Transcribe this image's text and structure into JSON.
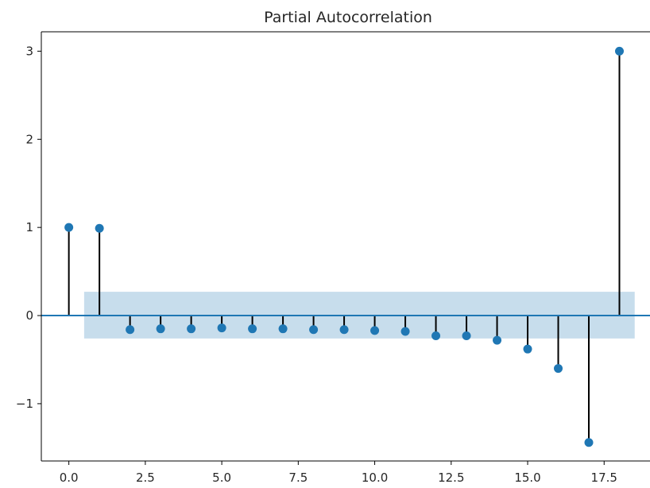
{
  "chart_data": {
    "type": "stem",
    "title": "Partial Autocorrelation",
    "xlabel": "",
    "ylabel": "",
    "x": [
      0,
      1,
      2,
      3,
      4,
      5,
      6,
      7,
      8,
      9,
      10,
      11,
      12,
      13,
      14,
      15,
      16,
      17,
      18
    ],
    "values": [
      1.0,
      0.99,
      -0.16,
      -0.15,
      -0.15,
      -0.14,
      -0.15,
      -0.15,
      -0.16,
      -0.16,
      -0.17,
      -0.18,
      -0.23,
      -0.23,
      -0.28,
      -0.38,
      -0.6,
      -1.44,
      3.0
    ],
    "confidence_band": {
      "x_from": 0.5,
      "x_to": 18.5,
      "lower": -0.26,
      "upper": 0.27
    },
    "xlim": [
      -0.9,
      19.0
    ],
    "ylim": [
      -1.65,
      3.22
    ],
    "x_ticks": [
      0.0,
      2.5,
      5.0,
      7.5,
      10.0,
      12.5,
      15.0,
      17.5
    ],
    "x_tick_labels": [
      "0.0",
      "2.5",
      "5.0",
      "7.5",
      "10.0",
      "12.5",
      "15.0",
      "17.5"
    ],
    "y_ticks": [
      -1,
      0,
      1,
      2,
      3
    ],
    "y_tick_labels": [
      "−1",
      "0",
      "1",
      "2",
      "3"
    ],
    "grid": false,
    "colors": {
      "marker": "#1f77b4",
      "stem": "#000000",
      "band": "#1f77b4",
      "baseline": "#1f77b4",
      "text": "#262626"
    }
  }
}
